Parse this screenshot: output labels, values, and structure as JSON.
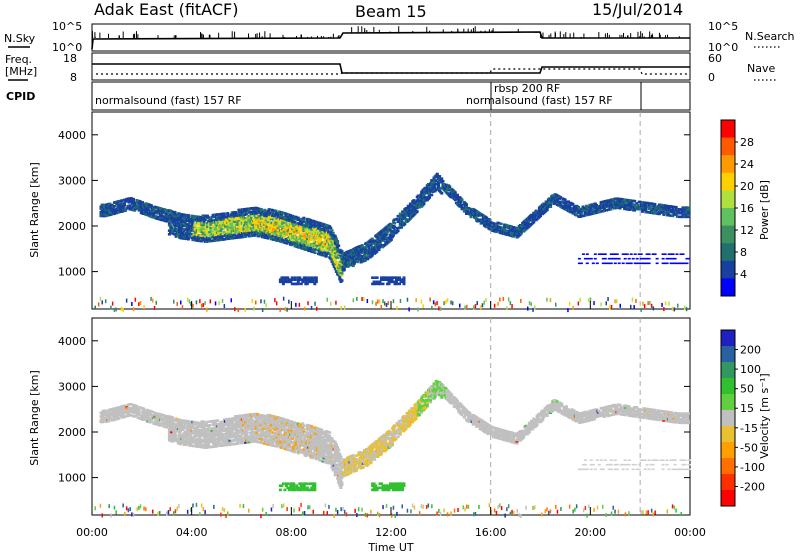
{
  "header": {
    "station": "Adak East (fitACF)",
    "beam": "Beam 15",
    "date": "15/Jul/2014"
  },
  "noise_panel": {
    "left_label": "N.Sky",
    "right_label": "N.Search",
    "left_ticks": [
      "10^5",
      "10^0"
    ],
    "right_ticks": [
      "10^5",
      "10^0"
    ]
  },
  "freq_panel": {
    "left_label_1": "Freq.",
    "left_label_2": "[MHz]",
    "right_label": "Nave",
    "left_ticks": [
      "18",
      "8"
    ],
    "right_ticks": [
      "60",
      "0"
    ]
  },
  "cpid_panel": {
    "label": "CPID",
    "segments": [
      {
        "label": "normalsound (fast) 157 RF",
        "start": "00:00",
        "end": "16:00"
      },
      {
        "label": "rbsp 200 RF",
        "start": "16:00",
        "end": "18:00"
      },
      {
        "label": "normalsound (fast) 157 RF",
        "start": "16:00",
        "end": "22:00"
      }
    ]
  },
  "range_axis": {
    "label": "Slant Range [km]",
    "ticks": [
      "4000",
      "3000",
      "2000",
      "1000"
    ]
  },
  "time_axis": {
    "label": "Time UT",
    "ticks": [
      "00:00",
      "04:00",
      "08:00",
      "12:00",
      "16:00",
      "20:00",
      "00:00"
    ]
  },
  "power_colorbar": {
    "title": "Power [dB]",
    "ticks": [
      "28",
      "24",
      "20",
      "16",
      "12",
      "8",
      "4"
    ],
    "colors": [
      "#ff0000",
      "#ff5a00",
      "#ff9a00",
      "#ffd000",
      "#b0e040",
      "#60c060",
      "#3c9060",
      "#207070",
      "#1840a0",
      "#0000ff"
    ]
  },
  "velocity_colorbar": {
    "title": "Velocity [m s⁻¹]",
    "ticks": [
      "200",
      "100",
      "50",
      "15",
      "-15",
      "-50",
      "-100",
      "-200"
    ],
    "colors": [
      "#2020c0",
      "#2860a0",
      "#309860",
      "#30c030",
      "#60d040",
      "#c0c0c0",
      "#e8c030",
      "#ffa000",
      "#ff7000",
      "#ff3000",
      "#ff0000"
    ]
  },
  "chart_data": {
    "type": "heatmap",
    "x_range": [
      "00:00",
      "24:00"
    ],
    "y_range_km": [
      180,
      4500
    ],
    "vertical_markers_hours": [
      16,
      22
    ],
    "echo_band_upper_km": [
      {
        "hour": 0.5,
        "km": 2500
      },
      {
        "hour": 1.5,
        "km": 2650
      },
      {
        "hour": 2.5,
        "km": 2450
      },
      {
        "hour": 3.5,
        "km": 2300
      },
      {
        "hour": 4.5,
        "km": 2250
      },
      {
        "hour": 5.5,
        "km": 2350
      },
      {
        "hour": 6.5,
        "km": 2450
      },
      {
        "hour": 7.5,
        "km": 2350
      },
      {
        "hour": 8.5,
        "km": 2200
      },
      {
        "hour": 9.5,
        "km": 2050
      },
      {
        "hour": 10.0,
        "km": 1450
      },
      {
        "hour": 11.0,
        "km": 1700
      },
      {
        "hour": 12.0,
        "km": 2150
      },
      {
        "hour": 13.0,
        "km": 2700
      },
      {
        "hour": 13.8,
        "km": 3200
      },
      {
        "hour": 15.0,
        "km": 2500
      },
      {
        "hour": 16.0,
        "km": 2150
      },
      {
        "hour": 17.0,
        "km": 2000
      },
      {
        "hour": 18.5,
        "km": 2750
      },
      {
        "hour": 19.5,
        "km": 2450
      },
      {
        "hour": 21.0,
        "km": 2650
      },
      {
        "hour": 23.5,
        "km": 2450
      }
    ]
  }
}
